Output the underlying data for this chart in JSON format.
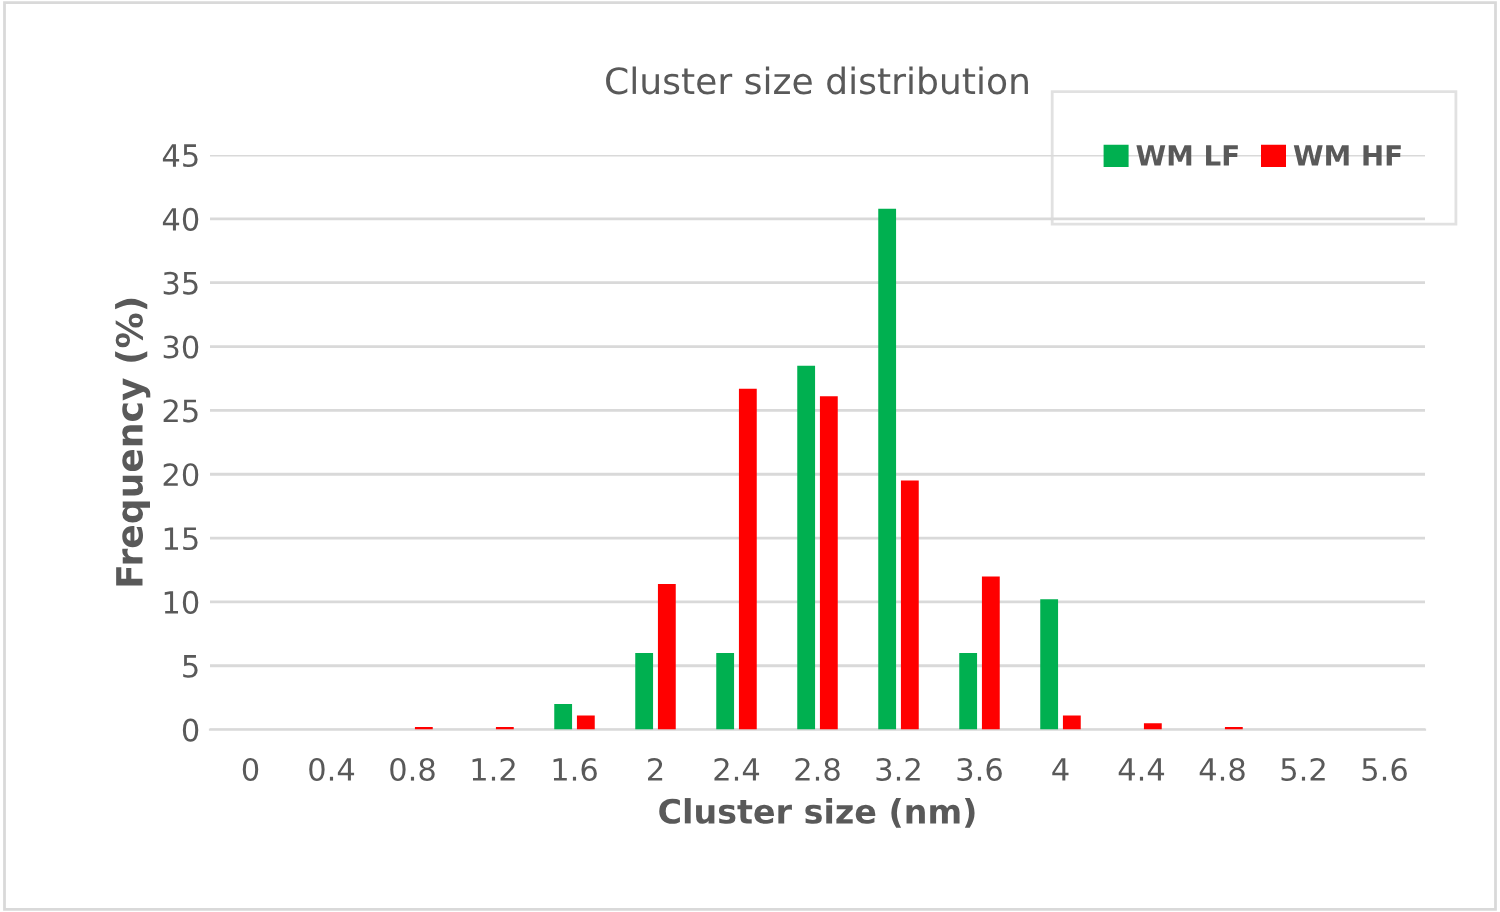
{
  "chart_data": {
    "type": "bar",
    "title": "Cluster size distribution",
    "xlabel": "Cluster size (nm)",
    "ylabel": "Frequency (%)",
    "categories": [
      "0",
      "0.4",
      "0.8",
      "1.2",
      "1.6",
      "2",
      "2.4",
      "2.8",
      "3.2",
      "3.6",
      "4",
      "4.4",
      "4.8",
      "5.2",
      "5.6"
    ],
    "series": [
      {
        "name": "WM LF",
        "color": "#00b050",
        "values": [
          0,
          0,
          0,
          0,
          2,
          6,
          6,
          28.5,
          40.8,
          6,
          10.2,
          0,
          0,
          0,
          0
        ]
      },
      {
        "name": "WM HF",
        "color": "#ff0000",
        "values": [
          0,
          0,
          0.2,
          0.2,
          1.1,
          11.4,
          26.7,
          26.1,
          19.5,
          12,
          1.1,
          0.5,
          0.2,
          0,
          0
        ]
      }
    ],
    "ylim": [
      0,
      45
    ],
    "yticks": [
      0,
      5,
      10,
      15,
      20,
      25,
      30,
      35,
      40,
      45
    ],
    "grid": "y",
    "legend": "top right"
  }
}
